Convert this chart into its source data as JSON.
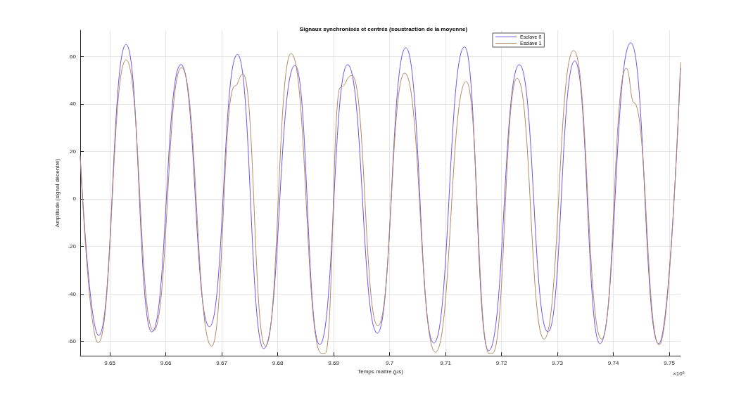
{
  "chart_data": {
    "type": "line",
    "title": "Signaux synchronisés et centrés (soustraction de la moyenne)",
    "xlabel": "Temps maître (µs)",
    "ylabel": "Amplitude (signal décentré)",
    "annotations": [
      "×10⁶"
    ],
    "xlim": [
      9.6447,
      9.752
    ],
    "xticks": [
      9.65,
      9.66,
      9.67,
      9.68,
      9.69,
      9.7,
      9.71,
      9.72,
      9.73,
      9.74,
      9.75
    ],
    "ylim": [
      -66,
      71
    ],
    "yticks": [
      -60,
      -40,
      -20,
      0,
      20,
      40,
      60
    ],
    "grid": true,
    "legend": "top right",
    "marker": "none",
    "line_style": "solid",
    "series": [
      {
        "name": "Esclave 0",
        "color": "#6f52ee",
        "x": [
          9.6447,
          9.648,
          9.6529,
          9.6575,
          9.6627,
          9.6678,
          9.6728,
          9.6775,
          9.6831,
          9.6875,
          9.6925,
          9.6978,
          9.7029,
          9.7079,
          9.7134,
          9.7177,
          9.7232,
          9.7283,
          9.7331,
          9.7376,
          9.7431,
          9.7481,
          9.752
        ],
        "values": [
          18,
          -57.5,
          65,
          -56,
          56.6,
          -53.8,
          60.8,
          -63,
          56.2,
          -61.3,
          56.5,
          -56.5,
          63.6,
          -60.7,
          64,
          -63.9,
          56.5,
          -56,
          58.1,
          -60.9,
          65.7,
          -61,
          55
        ]
      },
      {
        "name": "Esclave 1",
        "color": "#b08a62",
        "x": [
          9.6447,
          9.6479,
          9.6529,
          9.6578,
          9.6628,
          9.6682,
          9.6723,
          9.6738,
          9.6778,
          9.6824,
          9.6878,
          9.6885,
          9.6912,
          9.6933,
          9.6979,
          9.7027,
          9.7082,
          9.7137,
          9.7178,
          9.7184,
          9.7228,
          9.7276,
          9.7329,
          9.7379,
          9.7423,
          9.7437,
          9.7482,
          9.752
        ],
        "values": [
          18,
          -60.6,
          58.5,
          -55.5,
          55.3,
          -62,
          47.5,
          52.6,
          -62,
          61.2,
          -65,
          -65,
          47,
          52,
          -53.5,
          53,
          -64.5,
          49.4,
          -65,
          -65,
          50.8,
          -59,
          62.5,
          -59,
          55,
          40.5,
          -61.5,
          57.5
        ]
      }
    ]
  }
}
